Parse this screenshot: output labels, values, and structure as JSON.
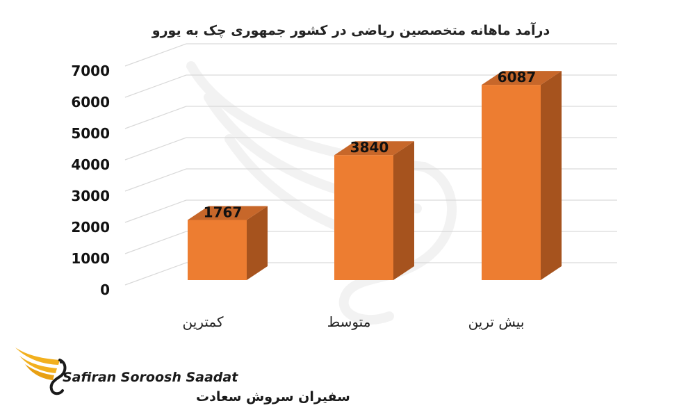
{
  "chart_data": {
    "type": "bar",
    "title": "درآمد ماهانه متخصصین ریاضی در کشور جمهوری چک به یورو",
    "categories": [
      "کمترین",
      "متوسط",
      "بیش ترین"
    ],
    "values": [
      1767,
      3840,
      6087
    ],
    "ylim": [
      0,
      7000
    ],
    "yticks": [
      "0",
      "1000",
      "2000",
      "3000",
      "4000",
      "5000",
      "6000",
      "7000"
    ],
    "grid": true,
    "legend": "none",
    "bar_style": "3d",
    "colors": {
      "front": "#ED7D31",
      "side": "#A6531E",
      "top": "#C7672A",
      "grid": "#D9D9D9"
    }
  },
  "logo": {
    "latin": "Safiran Soroosh Saadat",
    "farsi": "سفیران سروش سعادت",
    "colors": {
      "wing": "#F2B01E",
      "text": "#1A1A1A"
    }
  }
}
